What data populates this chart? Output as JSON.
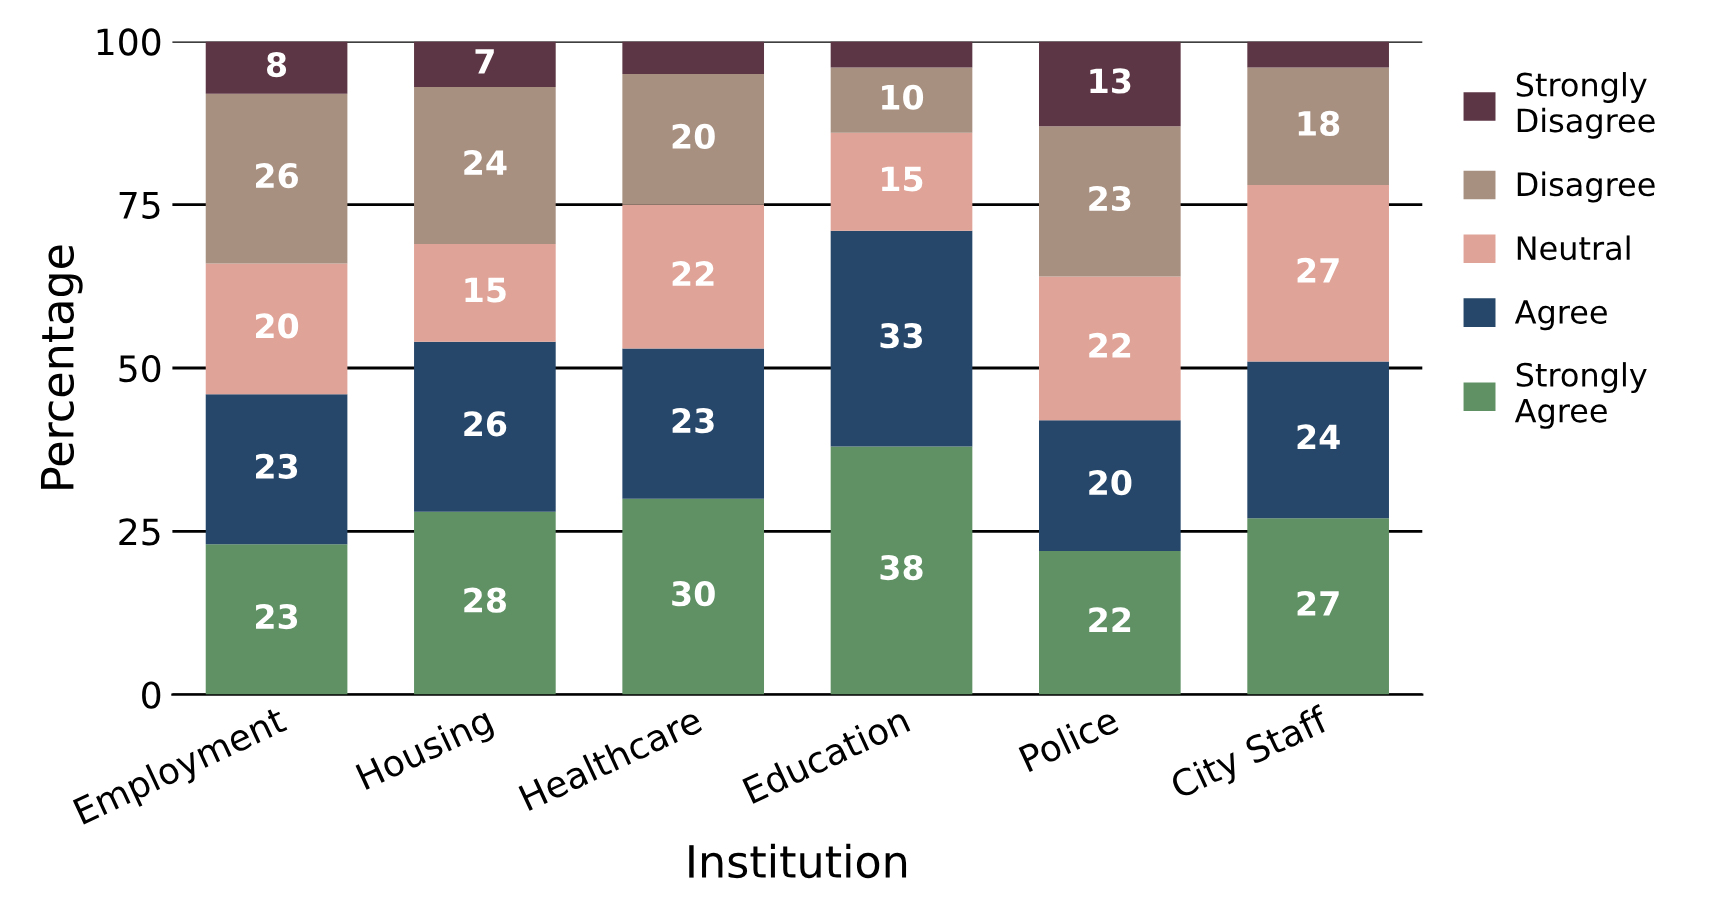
{
  "chart_data": {
    "type": "bar",
    "stacked": true,
    "xlabel": "Institution",
    "ylabel": "Percentage",
    "categories": [
      "Employment",
      "Housing",
      "Healthcare",
      "Education",
      "Police",
      "City Staff"
    ],
    "series": [
      {
        "name": "Strongly Agree",
        "color": "#5f9164",
        "values": [
          23,
          28,
          30,
          38,
          22,
          27
        ],
        "value_labels": [
          "23",
          "28",
          "30",
          "38",
          "22",
          "27"
        ]
      },
      {
        "name": "Agree",
        "color": "#26476a",
        "values": [
          23,
          26,
          23,
          33,
          20,
          24
        ],
        "value_labels": [
          "23",
          "26",
          "23",
          "33",
          "20",
          "24"
        ]
      },
      {
        "name": "Neutral",
        "color": "#e0a397",
        "values": [
          20,
          15,
          22,
          15,
          22,
          27
        ],
        "value_labels": [
          "20",
          "15",
          "22",
          "15",
          "22",
          "27"
        ]
      },
      {
        "name": "Disagree",
        "color": "#a89080",
        "values": [
          26,
          24,
          20,
          10,
          23,
          18
        ],
        "value_labels": [
          "26",
          "24",
          "20",
          "10",
          "23",
          "18"
        ]
      },
      {
        "name": "Strongly Disagree",
        "color": "#5c3644",
        "values": [
          8,
          7,
          5,
          4,
          13,
          4
        ],
        "value_labels": [
          "8",
          "7",
          null,
          null,
          "13",
          null
        ]
      }
    ],
    "ylim": [
      0,
      100
    ],
    "yticks": [
      0,
      25,
      50,
      75,
      100
    ],
    "grid": "y",
    "legend": "right"
  }
}
